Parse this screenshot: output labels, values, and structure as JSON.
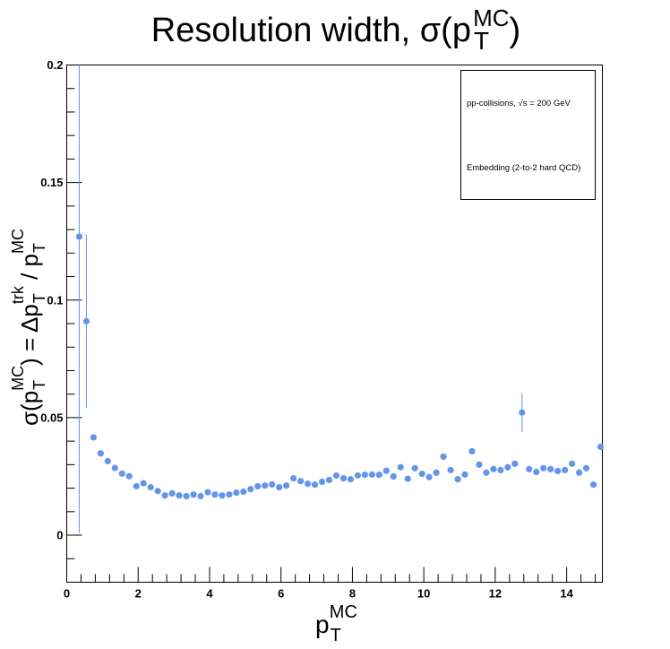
{
  "chart_data": {
    "type": "scatter",
    "title": "Resolution width, σ(p_T^MC)",
    "xlabel": "p_T^MC",
    "ylabel": "σ(p_T^MC) = Δp_T^trk / p_T^MC",
    "xlim": [
      0,
      15
    ],
    "ylim": [
      -0.02,
      0.2
    ],
    "x_ticks": [
      "0",
      "2",
      "4",
      "6",
      "8",
      "10",
      "12",
      "14"
    ],
    "y_ticks": [
      "0",
      "0.05",
      "0.1",
      "0.15",
      "0.2"
    ],
    "legend_entries": [
      "pp-collisions, √s = 200 GeV",
      "Embedding (2-to-2 hard QCD)"
    ],
    "legend_position": "top-right",
    "marker_color": "#6495ed",
    "series": [
      {
        "x": [
          0.35,
          0.55,
          0.75,
          0.95,
          1.15,
          1.35,
          1.55,
          1.75,
          1.95,
          2.15,
          2.35,
          2.55,
          2.75,
          2.95,
          3.15,
          3.35,
          3.55,
          3.75,
          3.95,
          4.15,
          4.35,
          4.55,
          4.75,
          4.95,
          5.15,
          5.35,
          5.55,
          5.75,
          5.95,
          6.15,
          6.35,
          6.55,
          6.75,
          6.95,
          7.15,
          7.35,
          7.55,
          7.75,
          7.95,
          8.15,
          8.35,
          8.55,
          8.75,
          8.95,
          9.15,
          9.35,
          9.55,
          9.75,
          9.95,
          10.15,
          10.35,
          10.55,
          10.75,
          10.95,
          11.15,
          11.35,
          11.55,
          11.75,
          11.95,
          12.15,
          12.35,
          12.55,
          12.75,
          12.95,
          13.15,
          13.35,
          13.55,
          13.75,
          13.95,
          14.15,
          14.35,
          14.55,
          14.75,
          14.95
        ],
        "y": [
          0.127,
          0.091,
          0.0416,
          0.0348,
          0.0315,
          0.0286,
          0.0262,
          0.0251,
          0.0208,
          0.0221,
          0.0204,
          0.0188,
          0.0169,
          0.0178,
          0.0169,
          0.0166,
          0.0173,
          0.0166,
          0.0183,
          0.0173,
          0.0169,
          0.0173,
          0.0181,
          0.0185,
          0.0196,
          0.0208,
          0.0211,
          0.0216,
          0.0204,
          0.0211,
          0.0242,
          0.023,
          0.0219,
          0.0215,
          0.0227,
          0.0235,
          0.0254,
          0.0242,
          0.0238,
          0.0254,
          0.0257,
          0.0258,
          0.0257,
          0.0274,
          0.025,
          0.0289,
          0.024,
          0.0285,
          0.0261,
          0.0247,
          0.0266,
          0.0334,
          0.0277,
          0.0238,
          0.0258,
          0.0357,
          0.03,
          0.0266,
          0.0281,
          0.0277,
          0.0289,
          0.0304,
          0.0522,
          0.0281,
          0.0269,
          0.0285,
          0.0281,
          0.0273,
          0.0277,
          0.0304,
          0.0266,
          0.0285,
          0.0215,
          0.0376
        ],
        "yerr": [
          0.126,
          0.037,
          0,
          0,
          0,
          0,
          0,
          0,
          0,
          0,
          0,
          0,
          0,
          0,
          0,
          0,
          0,
          0,
          0,
          0,
          0,
          0,
          0,
          0,
          0,
          0,
          0,
          0,
          0,
          0,
          0,
          0,
          0,
          0,
          0,
          0,
          0,
          0,
          0,
          0,
          0,
          0,
          0,
          0,
          0,
          0,
          0,
          0,
          0,
          0,
          0,
          0,
          0,
          0,
          0,
          0,
          0,
          0,
          0,
          0,
          0,
          0,
          0.0083,
          0,
          0,
          0,
          0,
          0,
          0,
          0,
          0,
          0,
          0,
          0
        ]
      }
    ]
  }
}
